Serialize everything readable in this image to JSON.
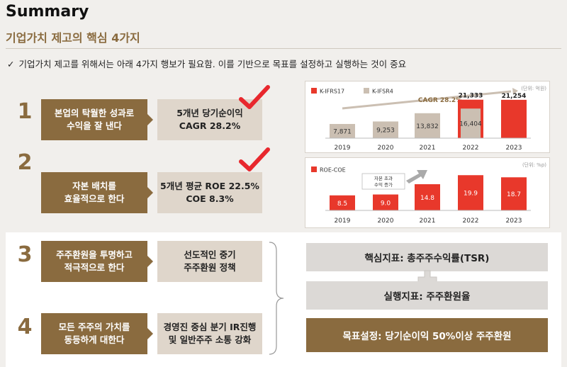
{
  "header": {
    "title": "Summary",
    "subtitle": "기업가치 제고의 핵심 4가지",
    "intro_check": "✓",
    "intro": "기업가치 제고를 위해서는 아래 4가지 행보가 필요함. 이를 기반으로 목표를 설정하고 실행하는 것이 중요"
  },
  "items": [
    {
      "num": "1",
      "left_line1": "본업의 탁월한 성과로",
      "left_line2": "수익을 잘 낸다",
      "right_line1": "5개년 당기순이익",
      "right_line2": "CAGR 28.2%",
      "checked": true
    },
    {
      "num": "2",
      "left_line1": "자본 배치를",
      "left_line2": "효율적으로 한다",
      "right_line1": "5개년 평균 ROE 22.5%",
      "right_line2": "COE 8.3%",
      "checked": true
    },
    {
      "num": "3",
      "left_line1": "주주환원을 투명하고",
      "left_line2": "적극적으로 한다",
      "right_line1": "선도적인 중기",
      "right_line2": "주주환원 정책",
      "checked": false
    },
    {
      "num": "4",
      "left_line1": "모든 주주의 가치를",
      "left_line2": "동등하게 대한다",
      "right_line1": "경영진 중심 분기 IR진행",
      "right_line2": "및 일반주주 소통 강화",
      "checked": false
    }
  ],
  "kpis": {
    "core": "핵심지표: 총주주수익률(TSR)",
    "exec": "실행지표: 주주환원율",
    "goal": "목표설정: 당기순이익 50%이상 주주환원"
  },
  "colors": {
    "brown": "#8a6b3f",
    "light_brown": "#dfd6cb",
    "red": "#e8382b",
    "check_red": "#e8272d",
    "ifrs4": "#cbbfb2"
  },
  "chart_data": [
    {
      "type": "bar",
      "unit": "(단위: 억원)",
      "categories": [
        "2019",
        "2020",
        "2021",
        "2022",
        "2023"
      ],
      "series": [
        {
          "name": "K-IFRS17",
          "values": [
            null,
            null,
            null,
            21333,
            21254
          ]
        },
        {
          "name": "K-IFSR4",
          "values": [
            7871,
            9253,
            13832,
            16404,
            null
          ]
        }
      ],
      "value_labels": {
        "2019": "7,871",
        "2020": "9,253",
        "2021": "13,832",
        "2022_top": "21,333",
        "2022_inner": "16,404",
        "2023": "21,254"
      },
      "annotation": "CAGR 28.2%",
      "ylim": [
        0,
        22000
      ]
    },
    {
      "type": "bar",
      "unit": "(단위: %p)",
      "categories": [
        "2019",
        "2020",
        "2021",
        "2022",
        "2023"
      ],
      "series": [
        {
          "name": "ROE-COE",
          "values": [
            8.5,
            9.0,
            14.8,
            19.9,
            18.7
          ]
        }
      ],
      "value_labels": [
        "8.5",
        "9.0",
        "14.8",
        "19.9",
        "18.7"
      ],
      "annotation_line1": "자본 초과",
      "annotation_line2": "수익 증가",
      "ylim": [
        0,
        20
      ]
    }
  ]
}
